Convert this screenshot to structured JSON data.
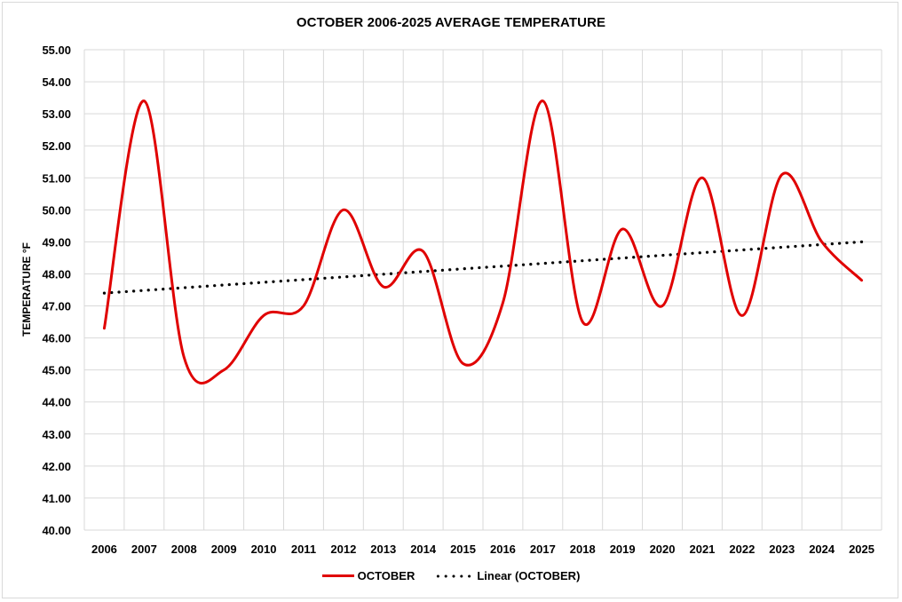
{
  "chart_data": {
    "type": "line",
    "title": "OCTOBER 2006-2025 AVERAGE TEMPERATURE",
    "xlabel": "",
    "ylabel": "TEMPERATURE °F",
    "ylim": [
      40,
      55
    ],
    "ytick_step": 1,
    "ytick_format": "2 decimals",
    "grid": true,
    "smooth": true,
    "legend_position": "bottom",
    "categories": [
      "2006",
      "2007",
      "2008",
      "2009",
      "2010",
      "2011",
      "2012",
      "2013",
      "2014",
      "2015",
      "2016",
      "2017",
      "2018",
      "2019",
      "2020",
      "2021",
      "2022",
      "2023",
      "2024",
      "2025"
    ],
    "yticks": [
      "40.00",
      "41.00",
      "42.00",
      "43.00",
      "44.00",
      "45.00",
      "46.00",
      "47.00",
      "48.00",
      "49.00",
      "50.00",
      "51.00",
      "52.00",
      "53.00",
      "54.00",
      "55.00"
    ],
    "series": [
      {
        "name": "OCTOBER",
        "style": "solid-smooth",
        "color": "#e00000",
        "values": [
          46.3,
          53.4,
          45.4,
          45.0,
          46.7,
          47.0,
          50.0,
          47.6,
          48.7,
          45.2,
          47.1,
          53.4,
          46.5,
          49.4,
          47.0,
          51.0,
          46.7,
          51.1,
          49.0,
          47.8
        ]
      },
      {
        "name": "Linear (OCTOBER)",
        "style": "dotted",
        "color": "#000000",
        "values_from_trend": [
          47.4,
          49.0
        ]
      }
    ]
  },
  "legend": {
    "items": [
      {
        "label": "OCTOBER"
      },
      {
        "label": "Linear (OCTOBER)"
      }
    ]
  }
}
